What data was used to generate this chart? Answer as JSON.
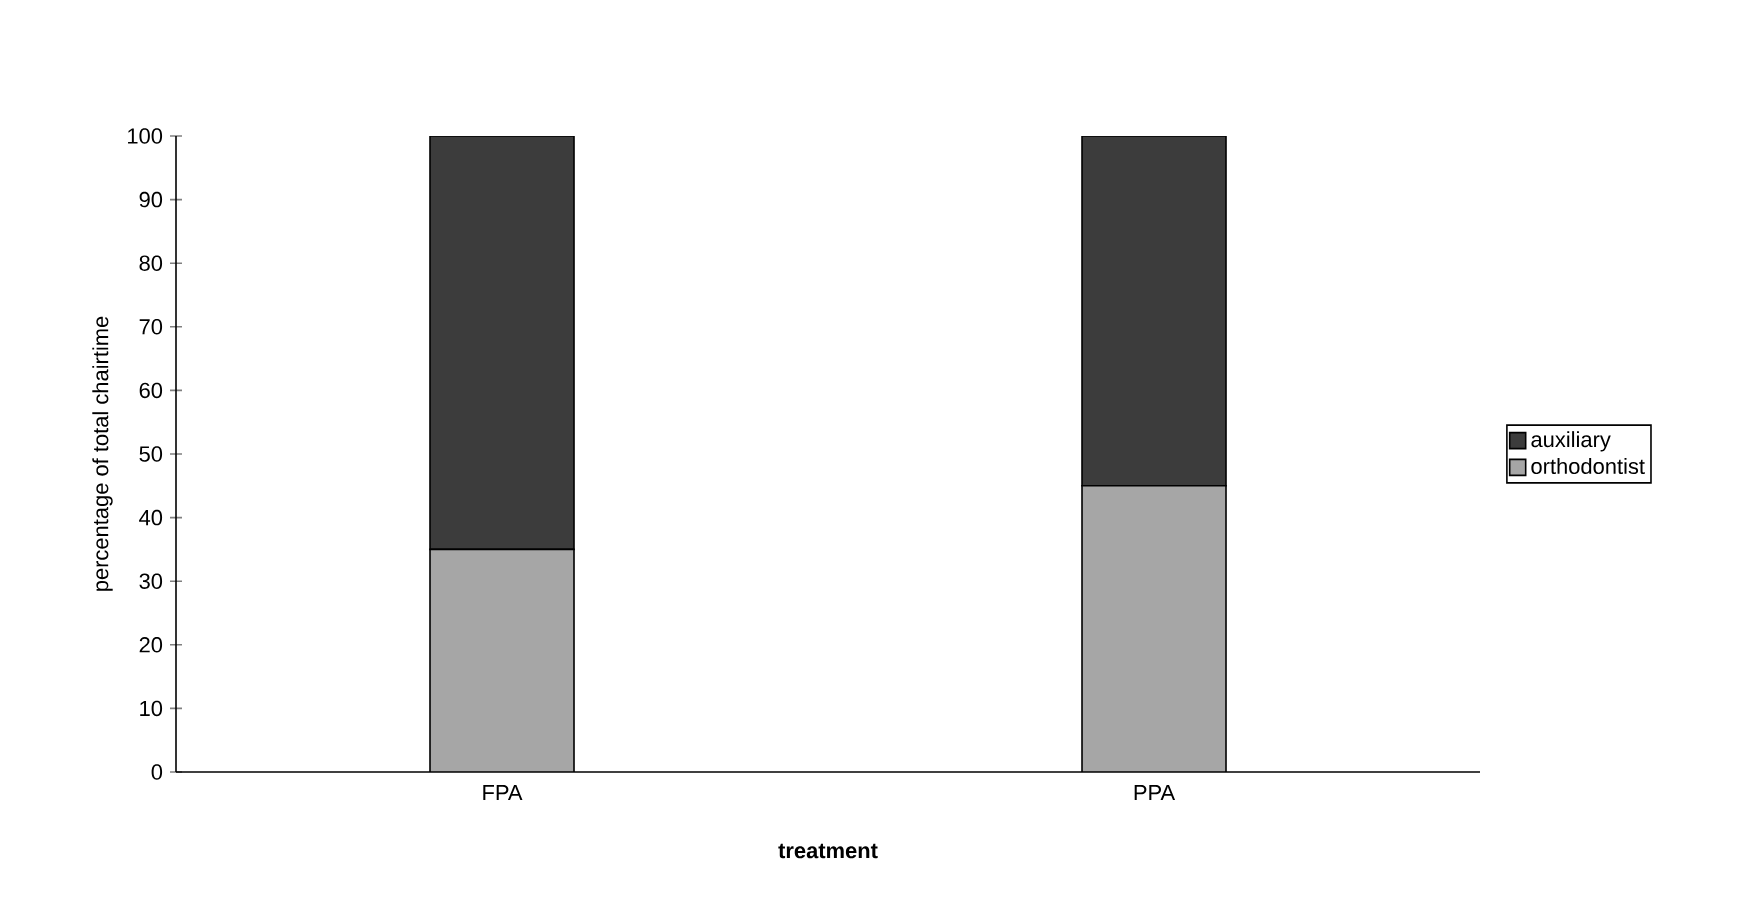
{
  "chart_data": {
    "type": "bar",
    "stacked": true,
    "xlabel": "treatment",
    "ylabel": "percentage of total chairtime",
    "categories": [
      "FPA",
      "PPA"
    ],
    "series": [
      {
        "name": "orthodontist",
        "color": "#a6a6a6",
        "values": [
          35,
          45
        ]
      },
      {
        "name": "auxiliary",
        "color": "#3c3c3c",
        "values": [
          65,
          55
        ]
      }
    ],
    "ylim": [
      0,
      100
    ],
    "yticks": [
      0,
      10,
      20,
      30,
      40,
      50,
      60,
      70,
      80,
      90,
      100
    ],
    "legend": "right",
    "grid": false
  }
}
